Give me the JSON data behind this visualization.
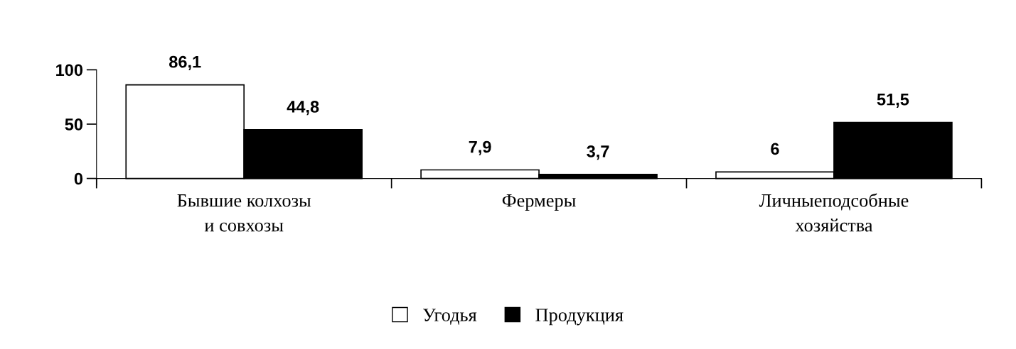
{
  "chart_data": {
    "type": "bar",
    "categories": [
      "Бывшие колхозы\nи совхозы",
      "Фермеры",
      "Личныеподсобные\nхозяйства"
    ],
    "series": [
      {
        "name": "Угодья",
        "color": "#ffffff",
        "values": [
          86.1,
          7.9,
          6
        ],
        "value_labels": [
          "86,1",
          "7,9",
          "6"
        ]
      },
      {
        "name": "Продукция",
        "color": "#000000",
        "values": [
          44.8,
          3.7,
          51.5
        ],
        "value_labels": [
          "44,8",
          "3,7",
          "51,5"
        ]
      }
    ],
    "ylim": [
      -6,
      100
    ],
    "yticks": [
      0,
      50,
      100
    ],
    "grid": false,
    "legend": "bottom"
  }
}
